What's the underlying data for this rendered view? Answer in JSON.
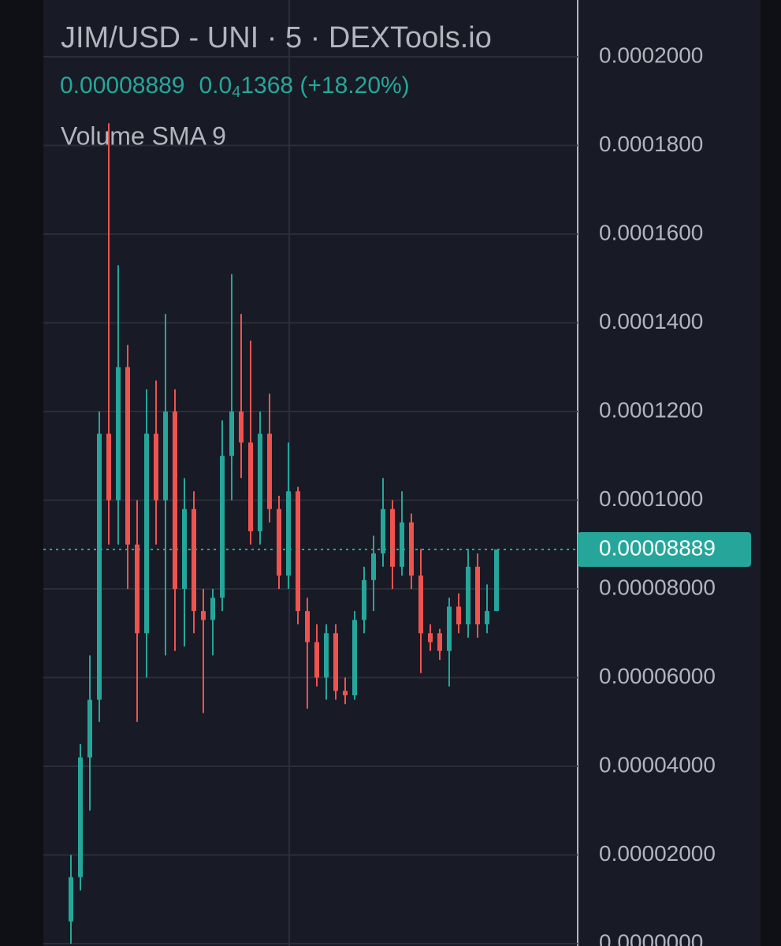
{
  "chart_data": {
    "type": "candlestick",
    "title": "JIM/USD - UNI · 5 · DEXTools.io",
    "price": "0.00008889",
    "change_prefix": "0.0",
    "change_sub": "4",
    "change_rest": "1368 (+18.20%)",
    "indicator": "Volume SMA 9",
    "up_color": "#26a69a",
    "down_color": "#ef5350",
    "last_price": {
      "value": 8.889e-05,
      "label": "0.00008889"
    },
    "ylim": [
      0,
      0.0002125
    ],
    "yticks": [
      {
        "value": 0,
        "label": "0.0000000"
      },
      {
        "value": 2e-05,
        "label": "0.00002000"
      },
      {
        "value": 4e-05,
        "label": "0.00004000"
      },
      {
        "value": 6e-05,
        "label": "0.00006000"
      },
      {
        "value": 8e-05,
        "label": "0.00008000"
      },
      {
        "value": 0.0001,
        "label": "0.0001000"
      },
      {
        "value": 0.00012,
        "label": "0.0001200"
      },
      {
        "value": 0.00014,
        "label": "0.0001400"
      },
      {
        "value": 0.00016,
        "label": "0.0001600"
      },
      {
        "value": 0.00018,
        "label": "0.0001800"
      },
      {
        "value": 0.0002,
        "label": "0.0002000"
      }
    ],
    "grid": true,
    "open": [
      5e-06,
      1.5e-05,
      4.2e-05,
      5.5e-05,
      0.000115,
      0.0001,
      0.00013,
      9e-05,
      7e-05,
      0.000115,
      0.0001,
      0.00012,
      8e-05,
      9.8e-05,
      7.5e-05,
      7.3e-05,
      7.8e-05,
      0.00011,
      0.00012,
      0.000113,
      9.3e-05,
      0.000115,
      9.8e-05,
      8.3e-05,
      0.000102,
      7.5e-05,
      6.8e-05,
      6e-05,
      7e-05,
      5.7e-05,
      5.6e-05,
      7.3e-05,
      8.2e-05,
      8.8e-05,
      9.8e-05,
      8.5e-05,
      9.5e-05,
      8.3e-05,
      7e-05,
      7e-05,
      6.6e-05,
      7.6e-05,
      7.2e-05,
      8.5e-05,
      7.2e-05,
      7.5e-05
    ],
    "high": [
      2e-05,
      4.5e-05,
      6.5e-05,
      0.00012,
      0.000185,
      0.000153,
      0.000135,
      0.0001,
      0.000125,
      0.000127,
      0.000142,
      0.000125,
      0.000105,
      0.000102,
      8e-05,
      8e-05,
      0.000118,
      0.000151,
      0.000142,
      0.000136,
      0.00012,
      0.000124,
      0.000101,
      0.000113,
      0.000103,
      7.8e-05,
      7.2e-05,
      7.2e-05,
      7.2e-05,
      6e-05,
      7.5e-05,
      8.5e-05,
      9.2e-05,
      0.000105,
      0.0001,
      0.000102,
      9.7e-05,
      8.9e-05,
      7.2e-05,
      7.1e-05,
      7.8e-05,
      7.9e-05,
      8.9e-05,
      8.8e-05,
      8.1e-05,
      8.889e-05
    ],
    "low": [
      0,
      1.2e-05,
      3e-05,
      5e-05,
      9e-05,
      9e-05,
      8e-05,
      5e-05,
      6e-05,
      9e-05,
      6.5e-05,
      6.6e-05,
      6.7e-05,
      7e-05,
      5.2e-05,
      6.5e-05,
      7.5e-05,
      0.0001,
      0.000105,
      9e-05,
      9e-05,
      9.5e-05,
      8e-05,
      8e-05,
      7.2e-05,
      5.3e-05,
      5.8e-05,
      5.5e-05,
      5.5e-05,
      5.4e-05,
      5.5e-05,
      7e-05,
      7.5e-05,
      8.5e-05,
      8e-05,
      8.3e-05,
      8e-05,
      6.1e-05,
      6.6e-05,
      6.4e-05,
      5.8e-05,
      7e-05,
      6.9e-05,
      6.9e-05,
      7e-05,
      7.5e-05
    ],
    "close": [
      1.5e-05,
      4.2e-05,
      5.5e-05,
      0.000115,
      0.0001,
      0.00013,
      9e-05,
      7e-05,
      0.000115,
      0.0001,
      0.00012,
      8e-05,
      9.8e-05,
      7.5e-05,
      7.3e-05,
      7.8e-05,
      0.00011,
      0.00012,
      0.000113,
      9.3e-05,
      0.000115,
      9.8e-05,
      8.3e-05,
      0.000102,
      7.5e-05,
      6.8e-05,
      6e-05,
      7e-05,
      5.7e-05,
      5.6e-05,
      7.3e-05,
      8.2e-05,
      8.8e-05,
      9.8e-05,
      8.5e-05,
      9.5e-05,
      8.3e-05,
      7e-05,
      6.8e-05,
      6.6e-05,
      7.6e-05,
      7.2e-05,
      8.5e-05,
      7.2e-05,
      7.5e-05,
      8.889e-05
    ]
  }
}
